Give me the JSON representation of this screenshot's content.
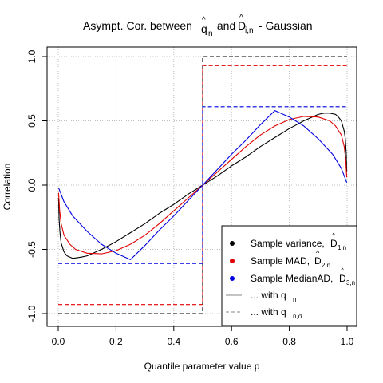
{
  "chart_data": {
    "type": "line",
    "title": {
      "prefix": "Asympt. Cor. between ",
      "q_base": "q",
      "q_hat": "^",
      "q_sub": "n",
      "conj": " and ",
      "d_base": "D",
      "d_hat": "^",
      "d_sub": "i,n",
      "suffix": " - Gaussian"
    },
    "xlabel": "Quantile parameter value p",
    "ylabel": "Correlation",
    "xlim": [
      0,
      1
    ],
    "ylim": [
      -1,
      1
    ],
    "xticks": [
      "0.0",
      "0.2",
      "0.4",
      "0.6",
      "0.8",
      "1.0"
    ],
    "xtick_values": [
      0,
      0.2,
      0.4,
      0.6,
      0.8,
      1.0
    ],
    "yticks": [
      "-1.0",
      "-0.5",
      "0.0",
      "0.5",
      "1.0"
    ],
    "ytick_values": [
      -1.0,
      -0.5,
      0.0,
      0.5,
      1.0
    ],
    "grid": true,
    "legend_position": "bottom-right",
    "colors": {
      "variance": "#000000",
      "mad": "#e00000",
      "medianad": "#0000e0",
      "grid": "#bdbdbd"
    },
    "series": [
      {
        "key": "variance",
        "style": "solid",
        "x": [
          0.001,
          0.003,
          0.006,
          0.01,
          0.02,
          0.03,
          0.05,
          0.08,
          0.1,
          0.15,
          0.2,
          0.25,
          0.3,
          0.35,
          0.4,
          0.45,
          0.5,
          0.55,
          0.6,
          0.65,
          0.7,
          0.75,
          0.8,
          0.85,
          0.9,
          0.92,
          0.94,
          0.96,
          0.97,
          0.98,
          0.99,
          0.994,
          0.997,
          0.999
        ],
        "y": [
          -0.1,
          -0.27,
          -0.37,
          -0.45,
          -0.52,
          -0.55,
          -0.57,
          -0.56,
          -0.55,
          -0.5,
          -0.44,
          -0.37,
          -0.3,
          -0.22,
          -0.15,
          -0.07,
          0.0,
          0.07,
          0.15,
          0.22,
          0.3,
          0.37,
          0.44,
          0.5,
          0.55,
          0.56,
          0.56,
          0.55,
          0.53,
          0.5,
          0.42,
          0.36,
          0.25,
          0.1
        ]
      },
      {
        "key": "mad",
        "style": "solid",
        "x": [
          0.001,
          0.005,
          0.01,
          0.02,
          0.04,
          0.06,
          0.1,
          0.15,
          0.2,
          0.25,
          0.3,
          0.35,
          0.4,
          0.45,
          0.5,
          0.55,
          0.6,
          0.65,
          0.7,
          0.75,
          0.8,
          0.85,
          0.9,
          0.94,
          0.96,
          0.98,
          0.99,
          0.995,
          0.999
        ],
        "y": [
          -0.06,
          -0.2,
          -0.3,
          -0.39,
          -0.46,
          -0.5,
          -0.53,
          -0.535,
          -0.51,
          -0.46,
          -0.39,
          -0.3,
          -0.2,
          -0.1,
          0.0,
          0.1,
          0.2,
          0.3,
          0.39,
          0.46,
          0.51,
          0.535,
          0.53,
          0.5,
          0.46,
          0.39,
          0.3,
          0.2,
          0.06
        ]
      },
      {
        "key": "medianad",
        "style": "solid",
        "x": [
          0.001,
          0.02,
          0.05,
          0.1,
          0.15,
          0.2,
          0.25,
          0.3,
          0.35,
          0.4,
          0.45,
          0.5,
          0.55,
          0.6,
          0.65,
          0.7,
          0.75,
          0.8,
          0.85,
          0.9,
          0.95,
          0.98,
          0.999
        ],
        "y": [
          -0.02,
          -0.13,
          -0.24,
          -0.36,
          -0.46,
          -0.53,
          -0.58,
          -0.47,
          -0.35,
          -0.24,
          -0.12,
          0.0,
          0.12,
          0.24,
          0.35,
          0.47,
          0.58,
          0.53,
          0.46,
          0.36,
          0.24,
          0.13,
          0.02
        ]
      },
      {
        "key": "variance",
        "style": "dashed",
        "x": [
          0,
          0.5,
          0.5,
          1
        ],
        "y": [
          -1.0,
          -1.0,
          1.0,
          1.0
        ]
      },
      {
        "key": "mad",
        "style": "dashed",
        "x": [
          0,
          0.5,
          0.5,
          1
        ],
        "y": [
          -0.93,
          -0.93,
          0.93,
          0.93
        ]
      },
      {
        "key": "medianad",
        "style": "dashed",
        "x": [
          0,
          0.5,
          0.5,
          1
        ],
        "y": [
          -0.61,
          -0.61,
          0.61,
          0.61
        ]
      }
    ],
    "legend": [
      {
        "key": "variance",
        "kind": "point",
        "text": "Sample variance,  ",
        "base": "D",
        "hat": "^",
        "sub": "1,n"
      },
      {
        "key": "mad",
        "kind": "point",
        "text": "Sample MAD,  ",
        "base": "D",
        "hat": "^",
        "sub": "2,n"
      },
      {
        "key": "medianad",
        "kind": "point",
        "text": "Sample MedianAD,  ",
        "base": "D",
        "hat": "^",
        "sub": "3,n"
      },
      {
        "key": "line",
        "kind": "solid",
        "text": "... with q",
        "sub": "n"
      },
      {
        "key": "line",
        "kind": "dashed",
        "text": "... with q",
        "sub": "n,σ"
      }
    ]
  }
}
